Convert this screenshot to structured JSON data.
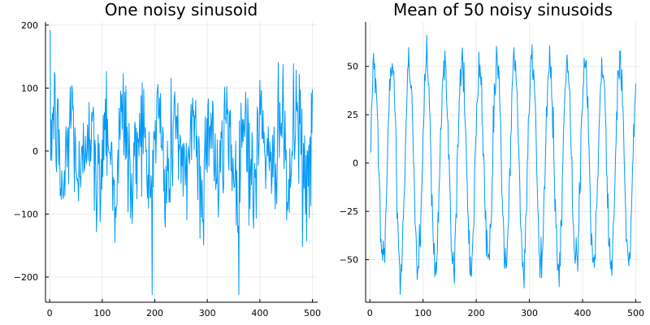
{
  "chart_data": [
    {
      "type": "line",
      "title": "One noisy sinusoid",
      "xlabel": "",
      "ylabel": "",
      "xlim": [
        -8,
        510
      ],
      "ylim": [
        -240,
        205
      ],
      "xticks": [
        0,
        100,
        200,
        300,
        400,
        500
      ],
      "yticks": [
        -200,
        -100,
        0,
        100,
        200
      ],
      "ytick_labels": [
        "−200",
        "−100",
        "0",
        "100",
        "200"
      ],
      "grid": true,
      "legend": "none",
      "series": [
        {
          "color": "#009AFA",
          "n_points": 500,
          "x_range": [
            1,
            500
          ],
          "model": "Noisy sinusoid: amplitude approx 60, period approx 33 samples, plus Gaussian noise (sd approx 50)",
          "amplitude": 60,
          "period": 33,
          "noise_sd": 50,
          "approx_extremes": {
            "max": 192,
            "min": -228
          }
        }
      ]
    },
    {
      "type": "line",
      "title": "Mean of 50 noisy sinusoids",
      "xlabel": "",
      "ylabel": "",
      "xlim": [
        -8,
        510
      ],
      "ylim": [
        -72,
        73
      ],
      "xticks": [
        0,
        100,
        200,
        300,
        400,
        500
      ],
      "yticks": [
        -50,
        -25,
        0,
        25,
        50
      ],
      "ytick_labels": [
        "−50",
        "−25",
        "0",
        "25",
        "50"
      ],
      "grid": true,
      "legend": "none",
      "series": [
        {
          "color": "#009AFA",
          "n_points": 500,
          "x_range": [
            1,
            500
          ],
          "model": "Mean of 50 noisy sinusoids: amplitude approx 53, period approx 33 samples, residual noise sd approx 6",
          "amplitude": 53,
          "period": 33,
          "noise_sd": 6,
          "approx_extremes": {
            "max": 66,
            "min": -68
          }
        }
      ]
    }
  ]
}
